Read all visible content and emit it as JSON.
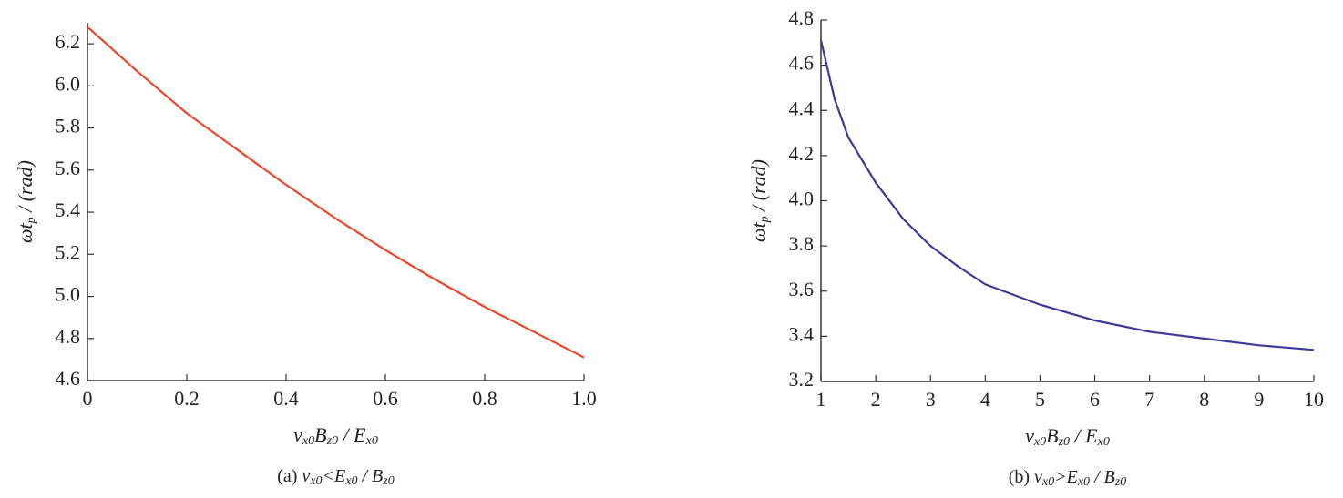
{
  "chart_data": [
    {
      "type": "line",
      "xlabel": [
        "v",
        "x0",
        "B",
        "z0",
        " / E",
        "x0"
      ],
      "ylabel": [
        "ωt",
        "p",
        " / (rad)"
      ],
      "caption": [
        "(a) ",
        "v",
        "x0",
        "<E",
        "x0",
        " / B",
        "z0"
      ],
      "x": [
        0,
        0.1,
        0.2,
        0.3,
        0.4,
        0.5,
        0.6,
        0.7,
        0.8,
        0.9,
        1.0
      ],
      "series": [
        {
          "color": "#e8472a",
          "values": [
            6.28,
            6.07,
            5.87,
            5.7,
            5.53,
            5.37,
            5.22,
            5.08,
            4.95,
            4.83,
            4.71
          ]
        }
      ],
      "xlim": [
        0,
        1
      ],
      "ylim": [
        4.6,
        6.3
      ],
      "xticks": [
        0,
        0.2,
        0.4,
        0.6,
        0.8,
        {
          "value": 1,
          "label": "1.0"
        }
      ],
      "yticks": [
        4.6,
        4.8,
        {
          "value": 5,
          "label": "5.0"
        },
        5.2,
        5.4,
        5.6,
        5.8,
        {
          "value": 6,
          "label": "6.0"
        },
        6.2
      ]
    },
    {
      "type": "line",
      "xlabel": [
        "v",
        "x0",
        "B",
        "z0",
        " / E",
        "x0"
      ],
      "ylabel": [
        "ωt",
        "p",
        " / (rad)"
      ],
      "caption": [
        "(b) ",
        "v",
        "x0",
        ">E",
        "x0",
        " / B",
        "z0"
      ],
      "x": [
        1,
        1.25,
        1.5,
        2,
        2.5,
        3,
        3.5,
        4,
        5,
        6,
        7,
        8,
        9,
        10
      ],
      "series": [
        {
          "color": "#3b3a9c",
          "values": [
            4.71,
            4.45,
            4.28,
            4.08,
            3.92,
            3.8,
            3.71,
            3.63,
            3.54,
            3.47,
            3.42,
            3.39,
            3.36,
            3.34
          ]
        }
      ],
      "xlim": [
        1,
        10
      ],
      "ylim": [
        3.2,
        4.8
      ],
      "xticks": [
        1,
        2,
        3,
        4,
        5,
        6,
        7,
        8,
        9,
        10
      ],
      "yticks": [
        3.2,
        3.4,
        3.6,
        3.8,
        {
          "value": 4,
          "label": "4.0"
        },
        4.2,
        4.4,
        4.6,
        4.8
      ]
    }
  ]
}
